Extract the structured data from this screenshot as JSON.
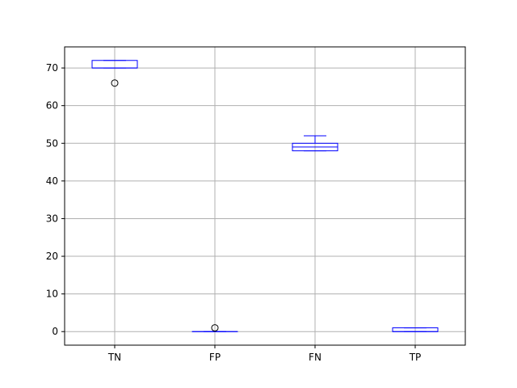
{
  "chart_data": {
    "type": "box",
    "categories": [
      "TN",
      "FP",
      "FN",
      "TP"
    ],
    "boxes": [
      {
        "category": "TN",
        "whisker_low": 70,
        "q1": 70,
        "median": 70,
        "q3": 72,
        "whisker_high": 72,
        "outliers": [
          66
        ]
      },
      {
        "category": "FP",
        "whisker_low": 0,
        "q1": 0,
        "median": 0,
        "q3": 0,
        "whisker_high": 0,
        "outliers": [
          1
        ]
      },
      {
        "category": "FN",
        "whisker_low": 48,
        "q1": 48,
        "median": 49,
        "q3": 50,
        "whisker_high": 52,
        "outliers": []
      },
      {
        "category": "TP",
        "whisker_low": 0,
        "q1": 0,
        "median": 0,
        "q3": 1,
        "whisker_high": 1,
        "outliers": []
      }
    ],
    "ylim": [
      -3.6,
      75.6
    ],
    "yticks": [
      0,
      10,
      20,
      30,
      40,
      50,
      60,
      70
    ],
    "grid": true,
    "box_color": "#0000ff",
    "grid_color": "#b0b0b0",
    "title": "",
    "xlabel": "",
    "ylabel": ""
  }
}
